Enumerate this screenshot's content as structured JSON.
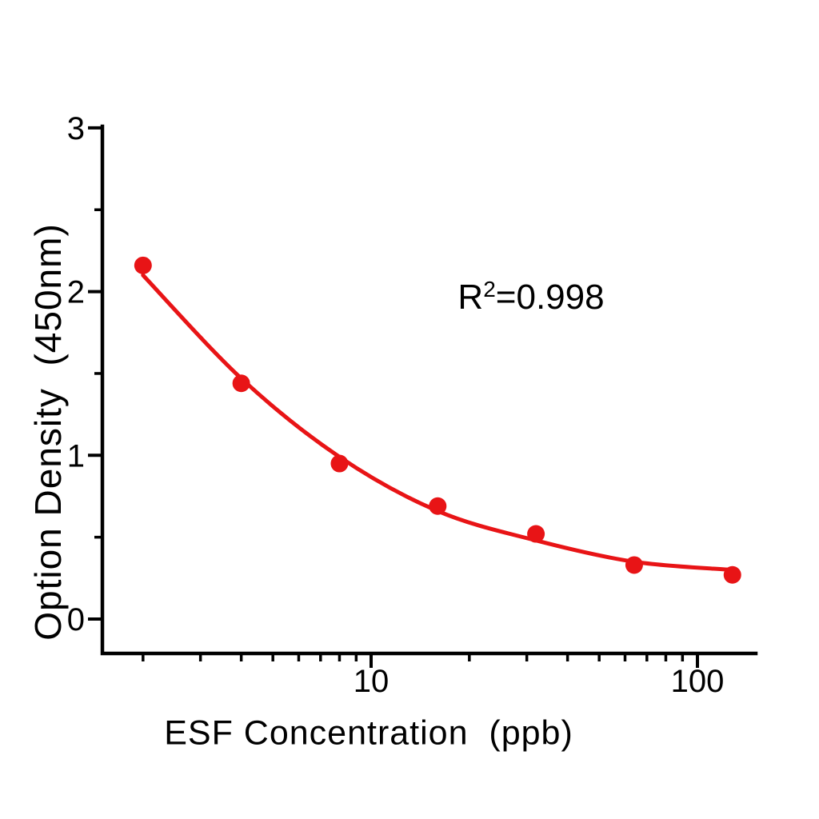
{
  "figure": {
    "background": "#ffffff",
    "axis_color": "#000000"
  },
  "chart_data": {
    "type": "scatter",
    "title": "",
    "x_axis": {
      "label": "ESF Concentration  (ppb)",
      "scale": "log",
      "range": [
        1.5,
        151
      ],
      "major_ticks": [
        10,
        100
      ],
      "minor_ticks": [
        2,
        3,
        4,
        5,
        6,
        7,
        8,
        9,
        20,
        30,
        40,
        50,
        60,
        70,
        80,
        90
      ],
      "grid": false
    },
    "y_axis": {
      "label": "Option Density  (450nm)",
      "scale": "linear",
      "range": [
        -0.21,
        3
      ],
      "major_ticks": [
        0,
        1,
        2,
        3
      ],
      "minor_ticks": [
        0.5,
        1.5,
        2.5
      ],
      "grid": false
    },
    "series": [
      {
        "name": "standard-points",
        "type": "scatter",
        "marker": "circle",
        "color": "#e81416",
        "x": [
          2,
          4,
          8,
          16,
          32,
          64,
          128
        ],
        "y": [
          2.16,
          1.44,
          0.95,
          0.69,
          0.52,
          0.33,
          0.27
        ]
      }
    ],
    "fit_curve": {
      "name": "fitted-curve",
      "color": "#e81416",
      "points": [
        [
          2,
          2.1
        ],
        [
          4,
          1.47
        ],
        [
          8,
          0.99
        ],
        [
          16,
          0.66
        ],
        [
          32,
          0.48
        ],
        [
          64,
          0.35
        ],
        [
          128,
          0.3
        ]
      ]
    },
    "annotation": {
      "base": "R",
      "sup": "2",
      "rest": "=0.998"
    },
    "legend": null
  }
}
